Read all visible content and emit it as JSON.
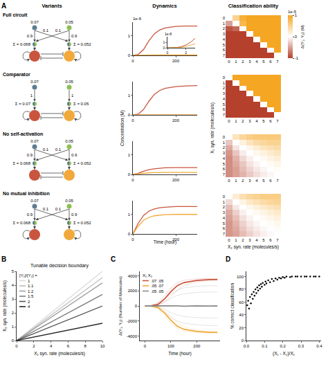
{
  "panel_labels": [
    "A",
    "B",
    "C",
    "D"
  ],
  "column_heads": [
    "Variants",
    "Dynamics",
    "Classification ability"
  ],
  "variants": [
    {
      "name": "Full circuit",
      "inputs": [
        {
          "value": 0.07,
          "color": "#5e7d8f"
        },
        {
          "value": 0.05,
          "color": "#8cc152"
        }
      ],
      "direct": 0.9,
      "cross": 0.1,
      "sums": [
        "Σ = 0.068",
        "Σ = 0.052"
      ],
      "outputs": [
        "#c9553f",
        "#f2a93b"
      ],
      "self_activation": true,
      "mutual_inhibition": true
    },
    {
      "name": "Comparator",
      "inputs": [
        {
          "value": 0.07,
          "color": "#5e7d8f"
        },
        {
          "value": 0.05,
          "color": "#8cc152"
        }
      ],
      "direct": 1,
      "sums": [
        "Σ = 0.07",
        "Σ = 0.05"
      ],
      "outputs": [
        "#c9553f",
        "#f2a93b"
      ],
      "self_activation": true,
      "mutual_inhibition": true
    },
    {
      "name": "No self-activation",
      "inputs": [
        {
          "value": 0.07,
          "color": "#5e7d8f"
        },
        {
          "value": 0.05,
          "color": "#8cc152"
        }
      ],
      "direct": 0.9,
      "cross": 0.1,
      "sums": [
        "Σ = 0.068",
        "Σ = 0.052"
      ],
      "outputs": [
        "#c9553f",
        "#f2a93b"
      ],
      "self_activation": false,
      "mutual_inhibition": true
    },
    {
      "name": "No mutual inhibition",
      "inputs": [
        {
          "value": 0.07,
          "color": "#5e7d8f"
        },
        {
          "value": 0.05,
          "color": "#8cc152"
        }
      ],
      "direct": 0.9,
      "cross": 0.1,
      "sums": [
        "Σ = 0.068",
        "Σ = 0.052"
      ],
      "outputs": [
        "#c9553f",
        "#f2a93b"
      ],
      "self_activation": true,
      "mutual_inhibition": false
    }
  ],
  "chart_data": [
    {
      "type": "line",
      "y_scale_label": "1e-6",
      "x": [
        0,
        25,
        50,
        75,
        100,
        125,
        150,
        200,
        250,
        300
      ],
      "series": [
        {
          "color": "#c9553f",
          "values": [
            0,
            0.05,
            0.3,
            0.75,
            1.1,
            1.3,
            1.4,
            1.48,
            1.5,
            1.5
          ]
        },
        {
          "color": "#f2a93b",
          "values": [
            0,
            0.01,
            0.02,
            0.02,
            0.02,
            0.02,
            0.02,
            0.02,
            0.02,
            0.02
          ]
        }
      ],
      "xlim": [
        0,
        300
      ],
      "xticks": [
        0,
        200
      ],
      "ylim": [
        0,
        1.7
      ],
      "yticks": [
        0,
        1
      ]
    },
    {
      "type": "line",
      "x": [
        0,
        25,
        50,
        75,
        100,
        125,
        150,
        200,
        250,
        300
      ],
      "series": [
        {
          "color": "#c9553f",
          "values": [
            0,
            0.04,
            0.28,
            0.7,
            1.05,
            1.25,
            1.36,
            1.45,
            1.48,
            1.5
          ]
        },
        {
          "color": "#f2a93b",
          "values": [
            0,
            0,
            0,
            0,
            0,
            0,
            0,
            0,
            0,
            0
          ]
        }
      ],
      "xlim": [
        0,
        300
      ],
      "xticks": [
        0,
        200
      ],
      "ylim": [
        0,
        1.7
      ],
      "yticks": [
        0,
        1
      ]
    },
    {
      "type": "line",
      "x": [
        0,
        25,
        50,
        75,
        100,
        125,
        150,
        200,
        250,
        300
      ],
      "series": [
        {
          "color": "#c9553f",
          "values": [
            0,
            0.06,
            0.16,
            0.24,
            0.29,
            0.32,
            0.34,
            0.35,
            0.35,
            0.35
          ]
        },
        {
          "color": "#f2a93b",
          "values": [
            0,
            0.03,
            0.06,
            0.08,
            0.09,
            0.1,
            0.1,
            0.1,
            0.1,
            0.1
          ]
        }
      ],
      "xlim": [
        0,
        300
      ],
      "xticks": [
        0,
        200
      ],
      "ylim": [
        0,
        1.7
      ],
      "yticks": [
        0,
        1
      ]
    },
    {
      "type": "line",
      "x_label": "Time (hour)",
      "y_label": "Concentration (M)",
      "x": [
        0,
        25,
        50,
        75,
        100,
        125,
        150,
        200,
        250,
        300
      ],
      "series": [
        {
          "color": "#c9553f",
          "values": [
            0,
            0.55,
            0.95,
            1.17,
            1.28,
            1.34,
            1.37,
            1.4,
            1.4,
            1.4
          ]
        },
        {
          "color": "#f2a93b",
          "values": [
            0,
            0.4,
            0.7,
            0.85,
            0.93,
            0.97,
            0.99,
            1.0,
            1.0,
            1.0
          ]
        }
      ],
      "xlim": [
        0,
        300
      ],
      "xticks": [
        0,
        200
      ],
      "ylim": [
        0,
        1.7
      ],
      "yticks": [
        0,
        1
      ]
    },
    {
      "type": "line",
      "y_scale_label": "1e-8",
      "x": [
        0,
        0.5,
        1,
        1.5,
        2,
        2.5,
        3
      ],
      "series": [
        {
          "color": "#c9553f",
          "values": [
            0,
            0,
            0.05,
            0.2,
            0.5,
            1,
            1.7
          ]
        },
        {
          "color": "#f2a93b",
          "values": [
            0,
            0,
            0.03,
            0.1,
            0.25,
            0.45,
            0.7
          ]
        }
      ],
      "xlim": [
        0,
        3
      ],
      "xticks": [
        0,
        2
      ],
      "ylim": [
        0,
        2
      ],
      "yticks": [
        0,
        1
      ]
    },
    {
      "type": "heatmap",
      "x_categories": [
        "0",
        "1",
        "2",
        "3",
        "4",
        "5",
        "6",
        "7"
      ],
      "y_categories": [
        "0",
        "1",
        "2",
        "3",
        "4",
        "5",
        "6",
        "7"
      ],
      "colors": [
        "#b5412c",
        "#ffffff",
        "#f5a623"
      ],
      "clim": [
        -1,
        1
      ],
      "colorbar_ticks": [
        1,
        0,
        -1
      ],
      "colorbar_title": "Δ(Y₁, Y₂) (M)",
      "colorbar_scale_label": "1e-5",
      "cells": [
        [
          0,
          0.5,
          0.9,
          1,
          1,
          1,
          1,
          1
        ],
        [
          -0.5,
          0,
          0.8,
          1,
          1,
          1,
          1,
          1
        ],
        [
          -0.9,
          -0.8,
          0,
          1,
          1,
          1,
          1,
          1
        ],
        [
          -1,
          -1,
          -1,
          0,
          1,
          1,
          1,
          1
        ],
        [
          -1,
          -1,
          -1,
          -1,
          0,
          1,
          1,
          1
        ],
        [
          -1,
          -1,
          -1,
          -1,
          -1,
          0,
          1,
          1
        ],
        [
          -1,
          -1,
          -1,
          -1,
          -1,
          -1,
          0,
          1
        ],
        [
          -1,
          -1,
          -1,
          -1,
          -1,
          -1,
          -1,
          0
        ]
      ]
    },
    {
      "type": "heatmap",
      "x_categories": [
        "0",
        "1",
        "2",
        "3",
        "4",
        "5",
        "6",
        "7"
      ],
      "y_categories": [
        "0",
        "1",
        "2",
        "3",
        "4",
        "5",
        "6",
        "7"
      ],
      "cells": [
        [
          0,
          1,
          1,
          1,
          1,
          1,
          1,
          1
        ],
        [
          -1,
          0,
          1,
          1,
          1,
          1,
          1,
          1
        ],
        [
          -1,
          -1,
          0,
          1,
          1,
          1,
          1,
          1
        ],
        [
          -1,
          -1,
          -1,
          0,
          1,
          1,
          1,
          1
        ],
        [
          -1,
          -1,
          -1,
          -1,
          0,
          1,
          1,
          1
        ],
        [
          -1,
          -1,
          -1,
          -1,
          -1,
          0,
          1,
          1
        ],
        [
          -1,
          -1,
          -1,
          -1,
          -1,
          -1,
          0,
          1
        ],
        [
          -1,
          -1,
          -1,
          -1,
          -1,
          -1,
          -1,
          0
        ]
      ]
    },
    {
      "type": "heatmap",
      "x_categories": [
        "0",
        "1",
        "2",
        "3",
        "4",
        "5",
        "6",
        "7"
      ],
      "y_categories": [
        "0",
        "1",
        "2",
        "3",
        "4",
        "5",
        "6",
        "7"
      ],
      "cells": [
        [
          0,
          0.3,
          0.45,
          0.55,
          0.6,
          0.6,
          0.6,
          0.6
        ],
        [
          -0.3,
          0,
          0.15,
          0.3,
          0.4,
          0.45,
          0.5,
          0.5
        ],
        [
          -0.45,
          -0.15,
          0,
          0.1,
          0.2,
          0.3,
          0.35,
          0.4
        ],
        [
          -0.55,
          -0.3,
          -0.1,
          0,
          0.08,
          0.15,
          0.22,
          0.28
        ],
        [
          -0.6,
          -0.4,
          -0.2,
          -0.08,
          0,
          0.06,
          0.12,
          0.18
        ],
        [
          -0.6,
          -0.45,
          -0.3,
          -0.15,
          -0.06,
          0,
          0.05,
          0.1
        ],
        [
          -0.6,
          -0.5,
          -0.35,
          -0.22,
          -0.12,
          -0.05,
          0,
          0.04
        ],
        [
          -0.6,
          -0.5,
          -0.4,
          -0.28,
          -0.18,
          -0.1,
          -0.04,
          0
        ]
      ]
    },
    {
      "type": "heatmap",
      "x_label": "X₂ syn. rate (molecules/s)",
      "y_label": "X₁ syn. rate (molecules/s)",
      "x_categories": [
        "0",
        "1",
        "2",
        "3",
        "4",
        "5",
        "6",
        "7"
      ],
      "y_categories": [
        "0",
        "1",
        "2",
        "3",
        "4",
        "5",
        "6",
        "7"
      ],
      "cells": [
        [
          0,
          0.2,
          0.35,
          0.45,
          0.5,
          0.55,
          0.55,
          0.55
        ],
        [
          -0.2,
          0,
          0.12,
          0.25,
          0.33,
          0.4,
          0.45,
          0.48
        ],
        [
          -0.35,
          -0.12,
          0,
          0.08,
          0.16,
          0.24,
          0.3,
          0.35
        ],
        [
          -0.45,
          -0.25,
          -0.08,
          0,
          0.06,
          0.12,
          0.18,
          0.24
        ],
        [
          -0.5,
          -0.33,
          -0.16,
          -0.06,
          0,
          0.05,
          0.1,
          0.15
        ],
        [
          -0.55,
          -0.4,
          -0.24,
          -0.12,
          -0.05,
          0,
          0.04,
          0.08
        ],
        [
          -0.55,
          -0.45,
          -0.3,
          -0.18,
          -0.1,
          -0.04,
          0,
          0.03
        ],
        [
          -0.55,
          -0.48,
          -0.35,
          -0.24,
          -0.15,
          -0.08,
          -0.03,
          0
        ]
      ]
    },
    {
      "type": "line",
      "title": "Tunable decision boundary",
      "x_label": "X₁ syn. rate (molecules/s)",
      "y_label": "X₂ syn. rate (molecules/s)",
      "legend_title": "[Y₁]/[Y₂] =",
      "legend": "upper left",
      "x": [
        0,
        10
      ],
      "series": [
        {
          "name": "1",
          "color": "#d9d9d9",
          "values": [
            0,
            5
          ]
        },
        {
          "name": "1.1",
          "color": "#bdbdbd",
          "values": [
            0,
            4.55
          ]
        },
        {
          "name": "1.2",
          "color": "#a0a0a0",
          "values": [
            0,
            4.17
          ]
        },
        {
          "name": "1.5",
          "color": "#7f7f7f",
          "values": [
            0,
            3.33
          ]
        },
        {
          "name": "2",
          "color": "#555555",
          "values": [
            0,
            2.5
          ]
        },
        {
          "name": "4",
          "color": "#262626",
          "values": [
            0,
            1.25
          ]
        }
      ],
      "xlim": [
        0,
        10
      ],
      "xticks": [
        0,
        2,
        4,
        6,
        8,
        10
      ],
      "ylim": [
        0,
        5
      ],
      "yticks": [
        0,
        1,
        2,
        3,
        4,
        5
      ]
    },
    {
      "type": "line",
      "x_label": "Time (hour)",
      "y_label": "Δ(Y₁, Y₂) (Number of Molecules)",
      "legend_title": "X₁  X₂",
      "legend": "upper left",
      "x": [
        0,
        25,
        50,
        75,
        100,
        125,
        150,
        200,
        250,
        280
      ],
      "series": [
        {
          "name": ".07  .05",
          "color": "#c9553f",
          "values": [
            0,
            30,
            200,
            900,
            1900,
            2700,
            3100,
            3400,
            3500,
            3500
          ],
          "samples": [
            [
              0,
              60,
              400,
              1300,
              2400,
              3100,
              3400,
              3600,
              3650,
              3650
            ],
            [
              0,
              10,
              100,
              500,
              1300,
              2100,
              2700,
              3200,
              3400,
              3450
            ]
          ]
        },
        {
          "name": ".05  .07",
          "color": "#f2a93b",
          "values": [
            0,
            -30,
            -200,
            -900,
            -1900,
            -2700,
            -3100,
            -3400,
            -3500,
            -3500
          ],
          "samples": [
            [
              0,
              -50,
              -350,
              -1200,
              -2300,
              -3000,
              -3350,
              -3550,
              -3600,
              -3600
            ],
            [
              0,
              -10,
              -120,
              -550,
              -1400,
              -2200,
              -2750,
              -3250,
              -3400,
              -3450
            ]
          ]
        },
        {
          "name": ".05  .05",
          "color": "#8c8c8c",
          "values": [
            0,
            10,
            -20,
            30,
            -10,
            20,
            -30,
            10,
            -20,
            0
          ],
          "samples": [
            [
              0,
              50,
              300,
              900,
              1600,
              2100,
              2400,
              2600,
              2700,
              2700
            ],
            [
              0,
              -40,
              -250,
              -800,
              -1500,
              -2000,
              -2300,
              -2500,
              -2600,
              -2600
            ],
            [
              0,
              30,
              150,
              500,
              1000,
              1400,
              1600,
              1800,
              1850,
              1850
            ],
            [
              0,
              -20,
              -120,
              -400,
              -900,
              -1200,
              -1400,
              -1550,
              -1600,
              -1600
            ]
          ]
        }
      ],
      "xlim": [
        -20,
        290
      ],
      "xticks": [
        0,
        100,
        200
      ],
      "ylim": [
        -4600,
        4600
      ],
      "yticks": [
        -4000,
        -2000,
        0,
        2000,
        4000
      ]
    },
    {
      "type": "scatter",
      "x_label": "(X₁ - X₂)/X₁",
      "y_label": "% correct classification",
      "color": "#000000",
      "x": [
        0.005,
        0.01,
        0.015,
        0.02,
        0.025,
        0.03,
        0.035,
        0.04,
        0.045,
        0.05,
        0.055,
        0.06,
        0.065,
        0.07,
        0.075,
        0.08,
        0.085,
        0.09,
        0.1,
        0.105,
        0.11,
        0.12,
        0.13,
        0.14,
        0.15,
        0.16,
        0.17,
        0.18,
        0.19,
        0.2,
        0.21,
        0.22,
        0.24,
        0.25,
        0.27,
        0.28,
        0.3,
        0.32,
        0.33,
        0.35,
        0.37,
        0.38,
        0.4
      ],
      "values": [
        55,
        62,
        50,
        68,
        58,
        72,
        65,
        76,
        70,
        80,
        74,
        83,
        78,
        86,
        81,
        88,
        84,
        90,
        87,
        92,
        89,
        94,
        91,
        96,
        93,
        97,
        95,
        98,
        97,
        99,
        98,
        100,
        99,
        100,
        100,
        100,
        100,
        100,
        100,
        100,
        100,
        100,
        100
      ],
      "xlim": [
        0,
        0.41
      ],
      "xticks": [
        {
          "value": 0,
          "label": "0.0"
        },
        0.1,
        0.2,
        0.3,
        0.4
      ],
      "ylim": [
        0,
        108
      ],
      "yticks": [
        0,
        20,
        40,
        60,
        80,
        100
      ]
    }
  ]
}
